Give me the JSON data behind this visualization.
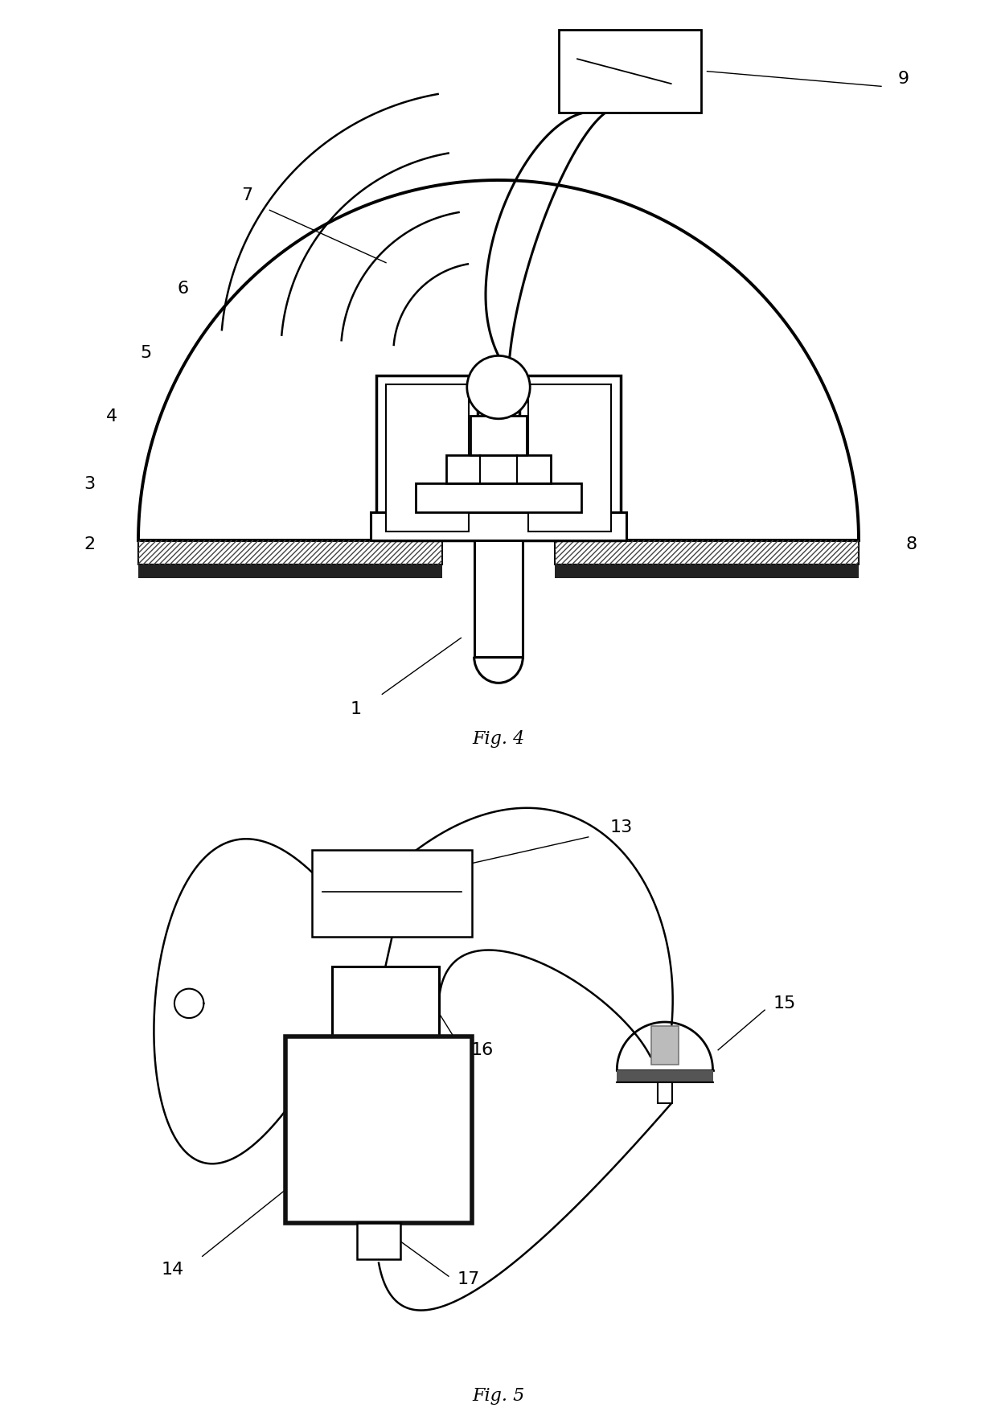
{
  "fig_width": 12.4,
  "fig_height": 17.61,
  "bg_color": "#ffffff",
  "lc": "#000000",
  "fig4_label": "Fig. 4",
  "fig5_label": "Fig. 5"
}
